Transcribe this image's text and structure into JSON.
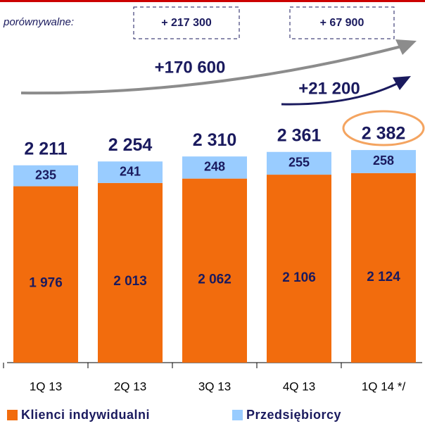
{
  "chart_data": {
    "type": "stacked_bar",
    "categories": [
      "1Q 13",
      "2Q 13",
      "3Q 13",
      "4Q 13",
      "1Q 14 */"
    ],
    "series": [
      {
        "name": "Klienci indywidualni",
        "color": "#f26c0d",
        "values": [
          1976,
          2013,
          2062,
          2106,
          2124
        ],
        "value_labels": [
          "1 976",
          "2 013",
          "2 062",
          "2 106",
          "2 124"
        ]
      },
      {
        "name": "Przedsiębiorcy",
        "color": "#99ccff",
        "values": [
          235,
          241,
          248,
          255,
          258
        ]
      }
    ],
    "totals": {
      "values": [
        2211,
        2254,
        2310,
        2361,
        2382
      ],
      "value_labels": [
        "2 211",
        "2 254",
        "2 310",
        "2 361",
        "2 382"
      ]
    },
    "annotations": [
      "porównywalne:",
      "+ 217 300",
      "+ 67 900",
      "+170 600",
      "+21 200"
    ],
    "ylim": [
      0,
      4000
    ]
  }
}
